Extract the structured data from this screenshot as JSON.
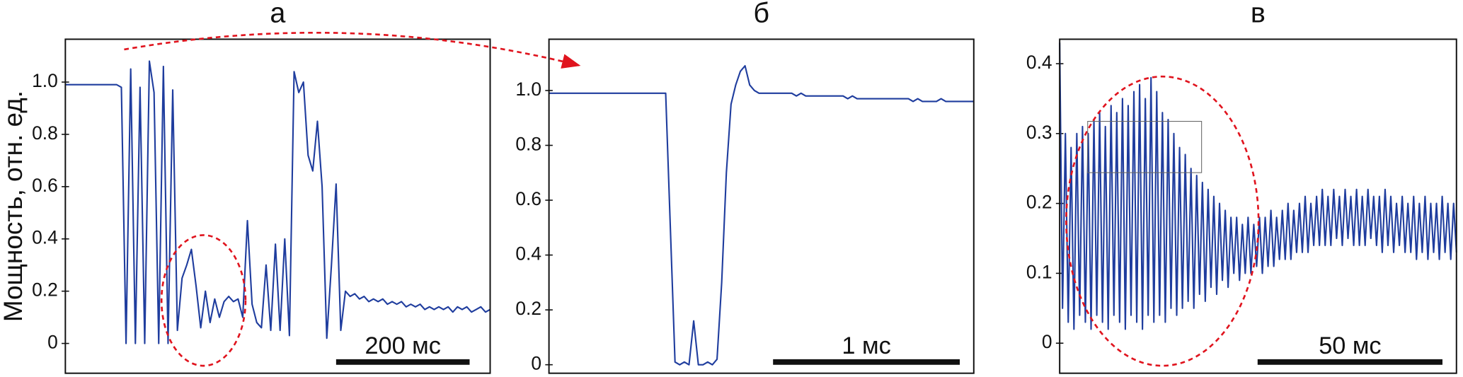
{
  "chart_data": [
    {
      "type": "line",
      "title": "а",
      "ylabel": "Мощность, отн. ед.",
      "color": "#1f3d9e",
      "scalebar": "200 мс",
      "ylim": [
        -0.114,
        1.164
      ],
      "yticks": [
        0,
        0.2,
        0.4,
        0.6,
        0.8,
        {
          "value": 1,
          "label": "1.0"
        }
      ],
      "values": [
        0.99,
        0.99,
        0.99,
        0.99,
        0.99,
        0.99,
        0.99,
        0.99,
        0.99,
        0.99,
        0.99,
        0.99,
        0.98,
        0.0,
        1.05,
        0.0,
        0.98,
        0.0,
        1.08,
        0.96,
        0.0,
        1.06,
        0.0,
        0.97,
        0.05,
        0.25,
        0.3,
        0.36,
        0.22,
        0.06,
        0.2,
        0.08,
        0.17,
        0.1,
        0.16,
        0.18,
        0.16,
        0.17,
        0.1,
        0.47,
        0.15,
        0.08,
        0.06,
        0.3,
        0.05,
        0.38,
        0.05,
        0.4,
        0.03,
        1.04,
        0.96,
        1.0,
        0.72,
        0.66,
        0.85,
        0.6,
        0.02,
        0.3,
        0.61,
        0.05,
        0.2,
        0.18,
        0.19,
        0.17,
        0.18,
        0.16,
        0.17,
        0.16,
        0.17,
        0.15,
        0.16,
        0.15,
        0.16,
        0.14,
        0.15,
        0.14,
        0.15,
        0.13,
        0.14,
        0.13,
        0.14,
        0.13,
        0.14,
        0.12,
        0.14,
        0.13,
        0.14,
        0.12,
        0.13,
        0.14,
        0.12,
        0.13
      ]
    },
    {
      "type": "line",
      "title": "б",
      "color": "#1f3d9e",
      "scalebar": "1 мс",
      "ylim": [
        -0.031,
        1.187
      ],
      "yticks": [
        0,
        0.2,
        0.4,
        0.6,
        0.8,
        {
          "value": 1,
          "label": "1.0"
        }
      ],
      "values": [
        0.99,
        0.99,
        0.99,
        0.99,
        0.99,
        0.99,
        0.99,
        0.99,
        0.99,
        0.99,
        0.99,
        0.99,
        0.99,
        0.99,
        0.99,
        0.99,
        0.99,
        0.99,
        0.99,
        0.99,
        0.99,
        0.99,
        0.99,
        0.99,
        0.99,
        0.99,
        0.5,
        0.01,
        0.0,
        0.01,
        0.0,
        0.16,
        0.0,
        0.0,
        0.01,
        0.0,
        0.02,
        0.3,
        0.7,
        0.95,
        1.02,
        1.07,
        1.09,
        1.02,
        1.0,
        0.99,
        0.99,
        0.99,
        0.99,
        0.99,
        0.99,
        0.99,
        0.99,
        0.98,
        0.99,
        0.98,
        0.98,
        0.98,
        0.98,
        0.98,
        0.98,
        0.98,
        0.98,
        0.98,
        0.97,
        0.98,
        0.97,
        0.97,
        0.97,
        0.97,
        0.97,
        0.97,
        0.97,
        0.97,
        0.97,
        0.97,
        0.97,
        0.97,
        0.96,
        0.97,
        0.96,
        0.96,
        0.96,
        0.96,
        0.97,
        0.96,
        0.96,
        0.96,
        0.96,
        0.96,
        0.96,
        0.96
      ]
    },
    {
      "type": "line",
      "title": "в",
      "color": "#1f3d9e",
      "scalebar": "50 мс",
      "ylim": [
        -0.043,
        0.435
      ],
      "yticks": [
        0,
        0.1,
        0.2,
        0.3,
        0.4
      ],
      "values": [
        0.43,
        0.05,
        0.3,
        0.03,
        0.28,
        0.02,
        0.3,
        0.04,
        0.31,
        0.03,
        0.3,
        0.02,
        0.32,
        0.04,
        0.33,
        0.03,
        0.31,
        0.02,
        0.34,
        0.04,
        0.33,
        0.03,
        0.35,
        0.02,
        0.34,
        0.04,
        0.36,
        0.03,
        0.37,
        0.02,
        0.35,
        0.04,
        0.38,
        0.03,
        0.36,
        0.04,
        0.33,
        0.03,
        0.32,
        0.05,
        0.3,
        0.04,
        0.28,
        0.05,
        0.27,
        0.06,
        0.25,
        0.05,
        0.24,
        0.07,
        0.23,
        0.06,
        0.22,
        0.08,
        0.21,
        0.07,
        0.2,
        0.09,
        0.19,
        0.08,
        0.18,
        0.1,
        0.18,
        0.09,
        0.17,
        0.1,
        0.18,
        0.1,
        0.17,
        0.11,
        0.18,
        0.1,
        0.18,
        0.11,
        0.19,
        0.11,
        0.18,
        0.12,
        0.19,
        0.12,
        0.2,
        0.12,
        0.19,
        0.13,
        0.2,
        0.13,
        0.21,
        0.13,
        0.2,
        0.14,
        0.21,
        0.14,
        0.22,
        0.14,
        0.21,
        0.14,
        0.22,
        0.15,
        0.21,
        0.14,
        0.22,
        0.15,
        0.21,
        0.14,
        0.22,
        0.14,
        0.21,
        0.14,
        0.22,
        0.15,
        0.21,
        0.14,
        0.21,
        0.13,
        0.22,
        0.14,
        0.21,
        0.13,
        0.2,
        0.14,
        0.21,
        0.13,
        0.2,
        0.13,
        0.21,
        0.12,
        0.2,
        0.13,
        0.21,
        0.12,
        0.2,
        0.13,
        0.2,
        0.12,
        0.21,
        0.13,
        0.2,
        0.12,
        0.2,
        0.13
      ]
    }
  ]
}
